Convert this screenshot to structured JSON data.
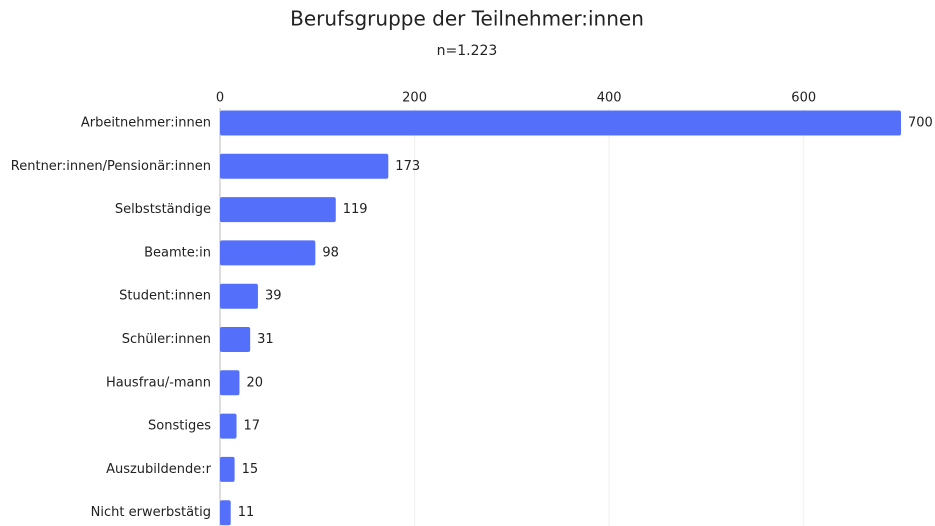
{
  "chart_data": {
    "type": "bar",
    "orientation": "horizontal",
    "title": "Berufsgruppe der Teilnehmer:innen",
    "subtitle": "n=1.223",
    "categories": [
      "Arbeitnehmer:innen",
      "Rentner:innen/Pensionär:innen",
      "Selbstständige",
      "Beamte:in",
      "Student:innen",
      "Schüler:innen",
      "Hausfrau/-mann",
      "Sonstiges",
      "Auszubildende:r",
      "Nicht erwerbstätig"
    ],
    "values": [
      700,
      173,
      119,
      98,
      39,
      31,
      20,
      17,
      15,
      11
    ],
    "color": "#5470fa",
    "xlim": [
      0,
      700
    ],
    "xticks": [
      0,
      200,
      400,
      600
    ],
    "grid": true
  }
}
